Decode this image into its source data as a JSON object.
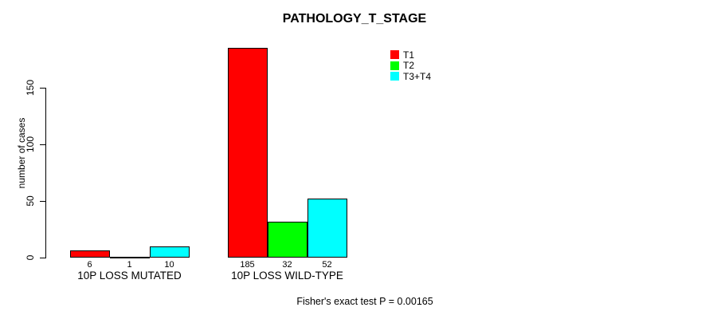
{
  "title": "PATHOLOGY_T_STAGE",
  "y_axis": {
    "label": "number of cases",
    "tick_labels": [
      "0",
      "50",
      "100",
      "150"
    ]
  },
  "footer": "Fisher's exact test P = 0.00165",
  "colors": {
    "t1": "#ff0000",
    "t2": "#00ff00",
    "t3_t4": "#00ffff",
    "bar_border": "#000000",
    "axis": "#000000"
  },
  "chart_data": {
    "type": "bar",
    "title": "PATHOLOGY_T_STAGE",
    "xlabel": "",
    "ylabel": "number of cases",
    "categories": [
      "10P LOSS MUTATED",
      "10P LOSS WILD-TYPE"
    ],
    "series": [
      {
        "name": "T1",
        "color": "#ff0000",
        "values": [
          6,
          185
        ]
      },
      {
        "name": "T2",
        "color": "#00ff00",
        "values": [
          1,
          32
        ]
      },
      {
        "name": "T3+T4",
        "color": "#00ffff",
        "values": [
          10,
          52
        ]
      }
    ],
    "bar_value_labels": [
      [
        6,
        1,
        10
      ],
      [
        185,
        32,
        52
      ]
    ],
    "yticks": [
      0,
      50,
      100,
      150
    ],
    "ylim": [
      0,
      185
    ],
    "grid": false,
    "legend_position": "top-right",
    "annotation": "Fisher's exact test P = 0.00165"
  }
}
